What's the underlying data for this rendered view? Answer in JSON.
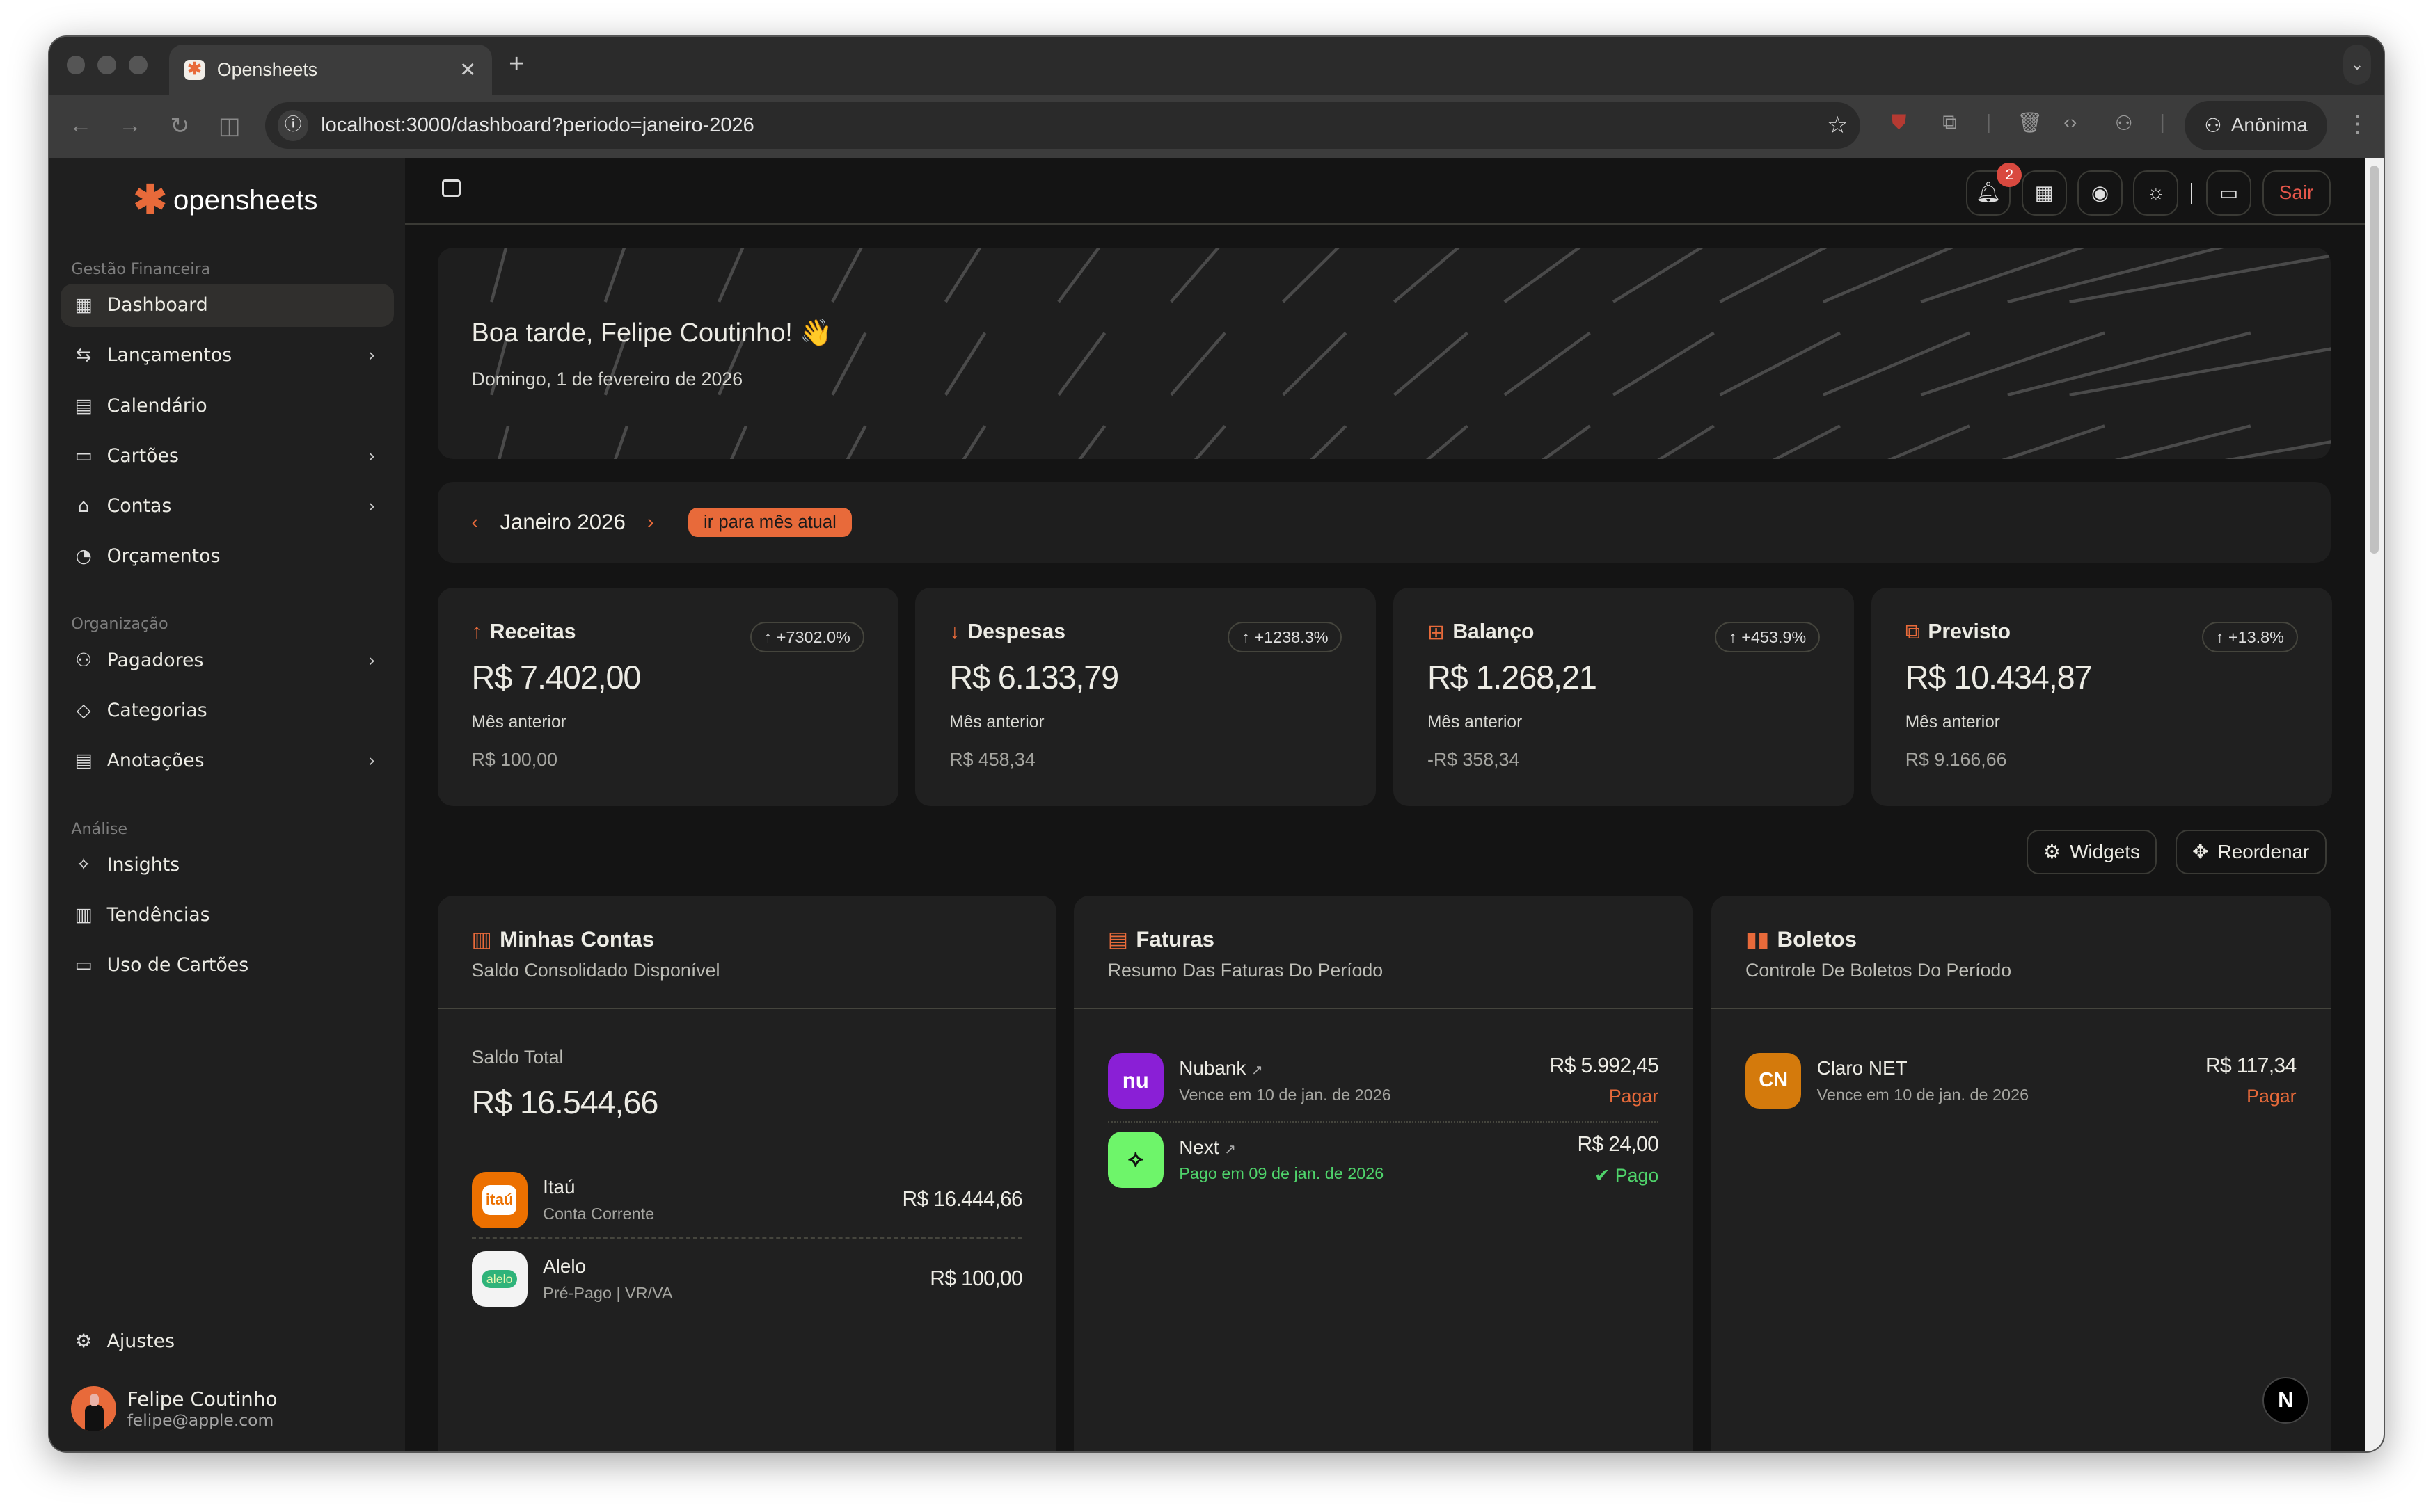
{
  "browser": {
    "tab_title": "Opensheets",
    "url": "localhost:3000/dashboard?periodo=janeiro-2026",
    "profile": "Anônima"
  },
  "brand": {
    "name": "opensheets",
    "accent": "#e86a3a"
  },
  "sidebar": {
    "sections": [
      {
        "title": "Gestão Financeira",
        "items": [
          {
            "label": "Dashboard",
            "icon": "dashboard-icon",
            "active": true
          },
          {
            "label": "Lançamentos",
            "icon": "arrows-icon",
            "submenu": true
          },
          {
            "label": "Calendário",
            "icon": "calendar-icon"
          },
          {
            "label": "Cartões",
            "icon": "credit-card-icon",
            "submenu": true
          },
          {
            "label": "Contas",
            "icon": "bank-icon",
            "submenu": true
          },
          {
            "label": "Orçamentos",
            "icon": "chart-circle-icon"
          }
        ]
      },
      {
        "title": "Organização",
        "items": [
          {
            "label": "Pagadores",
            "icon": "users-icon",
            "submenu": true
          },
          {
            "label": "Categorias",
            "icon": "tag-icon"
          },
          {
            "label": "Anotações",
            "icon": "notes-icon",
            "submenu": true
          }
        ]
      },
      {
        "title": "Análise",
        "items": [
          {
            "label": "Insights",
            "icon": "sparkles-icon"
          },
          {
            "label": "Tendências",
            "icon": "bar-chart-icon"
          },
          {
            "label": "Uso de Cartões",
            "icon": "credit-card-icon"
          }
        ]
      }
    ],
    "settings": "Ajustes",
    "user": {
      "name": "Felipe Coutinho",
      "email": "felipe@apple.com"
    }
  },
  "header": {
    "notifications": "2",
    "logout": "Sair"
  },
  "hero": {
    "greeting": "Boa tarde, Felipe Coutinho! 👋",
    "date": "Domingo, 1 de fevereiro de 2026"
  },
  "period": {
    "label": "Janeiro 2026",
    "current_button": "ir para mês atual"
  },
  "stats": [
    {
      "title": "Receitas",
      "icon": "arrow-up-icon",
      "value": "R$ 7.402,00",
      "change": "+7302.0%",
      "prev_label": "Mês anterior",
      "prev": "R$ 100,00"
    },
    {
      "title": "Despesas",
      "icon": "arrow-down-icon",
      "value": "R$ 6.133,79",
      "change": "+1238.3%",
      "prev_label": "Mês anterior",
      "prev": "R$ 458,34"
    },
    {
      "title": "Balanço",
      "icon": "plus-minus-icon",
      "value": "R$ 1.268,21",
      "change": "+453.9%",
      "prev_label": "Mês anterior",
      "prev": "-R$ 358,34"
    },
    {
      "title": "Previsto",
      "icon": "dollar-file-icon",
      "value": "R$ 10.434,87",
      "change": "+13.8%",
      "prev_label": "Mês anterior",
      "prev": "R$ 9.166,66"
    }
  ],
  "actions": {
    "widgets": "Widgets",
    "reorder": "Reordenar"
  },
  "accounts": {
    "title": "Minhas Contas",
    "subtitle": "Saldo Consolidado Disponível",
    "total_label": "Saldo Total",
    "total": "R$ 16.544,66",
    "items": [
      {
        "name": "Itaú",
        "type": "Conta Corrente",
        "amount": "R$ 16.444,66",
        "logo": "itaú"
      },
      {
        "name": "Alelo",
        "type": "Pré-Pago | VR/VA",
        "amount": "R$ 100,00",
        "logo": "alelo"
      }
    ]
  },
  "invoices": {
    "title": "Faturas",
    "subtitle": "Resumo Das Faturas Do Período",
    "items": [
      {
        "name": "Nubank",
        "status_text": "Vence em 10 de jan. de 2026",
        "amount": "R$ 5.992,45",
        "action": "Pagar",
        "logo": "nu",
        "color": "#8a1fd6"
      },
      {
        "name": "Next",
        "status_text": "Pago em 09 de jan. de 2026",
        "amount": "R$ 24,00",
        "action": "Pago",
        "color": "#6ef56a"
      }
    ]
  },
  "bills": {
    "title": "Boletos",
    "subtitle": "Controle De Boletos Do Período",
    "items": [
      {
        "name": "Claro NET",
        "status_text": "Vence em 10 de jan. de 2026",
        "amount": "R$ 117,34",
        "action": "Pagar",
        "initials": "CN",
        "color": "#d47a0c"
      }
    ]
  }
}
